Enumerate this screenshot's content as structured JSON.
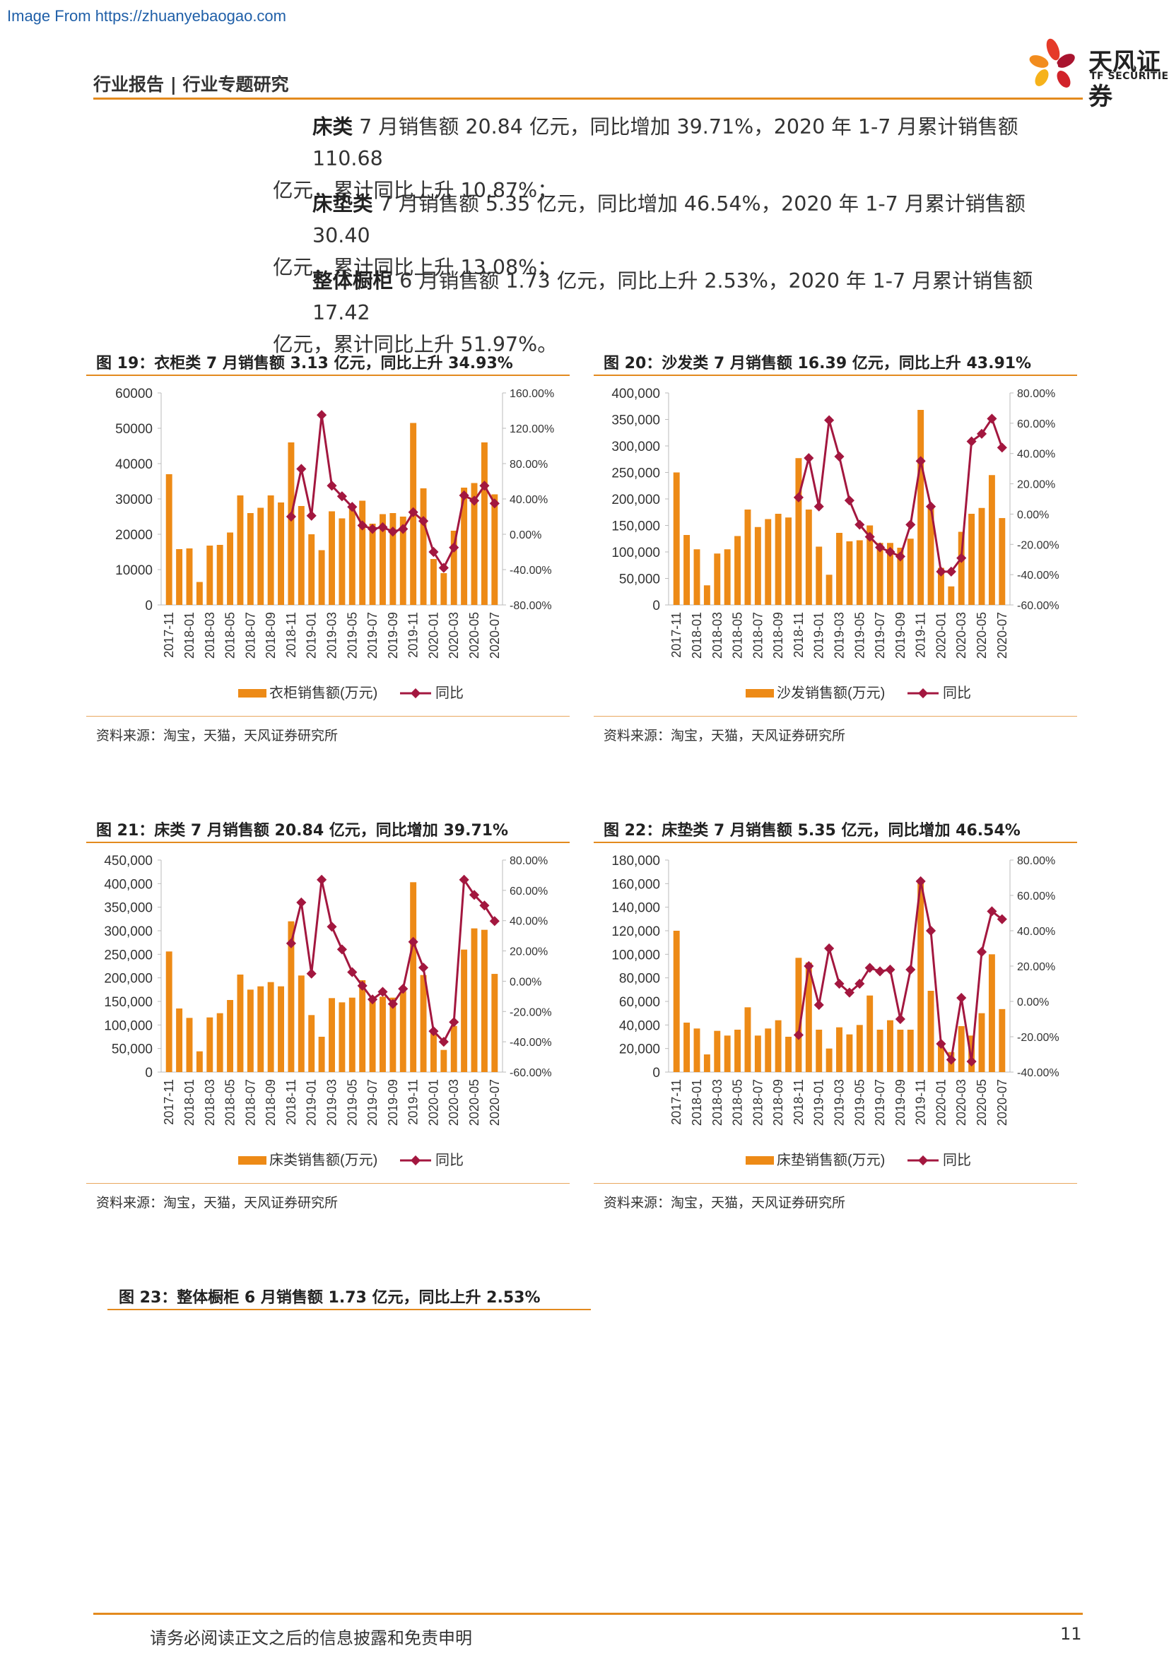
{
  "watermark": "Image From https://zhuanyebaogao.com",
  "header": {
    "title": "行业报告 | 行业专题研究",
    "logo_text": "天风证券",
    "logo_sub": "TF SECURITIES"
  },
  "paragraphs": [
    {
      "lead": "床类",
      "line1": " 7 月销售额 20.84 亿元，同比增加 39.71%，2020 年 1-7 月累计销售额 110.68",
      "line2": "亿元，累计同比上升 10.87%；"
    },
    {
      "lead": "床垫类",
      "line1": " 7 月销售额 5.35 亿元，同比增加 46.54%，2020 年 1-7 月累计销售额 30.40",
      "line2": "亿元，累计同比上升 13.08%；"
    },
    {
      "lead": "整体橱柜",
      "line1": " 6 月销售额 1.73 亿元，同比上升 2.53%，2020 年 1-7 月累计销售额 17.42",
      "line2": "亿元，累计同比上升 51.97%。"
    }
  ],
  "figures": {
    "fig19": {
      "title": "图 19：衣柜类 7 月销售额 3.13 亿元，同比上升 34.93%",
      "source": "资料来源：淘宝，天猫，天风证券研究所"
    },
    "fig20": {
      "title": "图 20：沙发类 7 月销售额 16.39 亿元，同比上升 43.91%",
      "source": "资料来源：淘宝，天猫，天风证券研究所"
    },
    "fig21": {
      "title": "图 21：床类 7 月销售额 20.84 亿元，同比增加 39.71%",
      "source": "资料来源：淘宝，天猫，天风证券研究所"
    },
    "fig22": {
      "title": "图 22：床垫类 7 月销售额 5.35 亿元，同比增加 46.54%",
      "source": "资料来源：淘宝，天猫，天风证券研究所"
    },
    "fig23": {
      "title": "图 23：整体橱柜 6 月销售额 1.73 亿元，同比上升 2.53%"
    }
  },
  "footer": {
    "disclaimer": "请务必阅读正文之后的信息披露和免责申明",
    "page": "11"
  },
  "colors": {
    "bar": "#ed8a16",
    "line": "#a3173f",
    "accent": "#e38a1e"
  },
  "chart_data": [
    {
      "id": "fig19",
      "type": "bar+line",
      "categories": [
        "2017-11",
        "2017-12",
        "2018-01",
        "2018-02",
        "2018-03",
        "2018-04",
        "2018-05",
        "2018-06",
        "2018-07",
        "2018-08",
        "2018-09",
        "2018-10",
        "2018-11",
        "2018-12",
        "2019-01",
        "2019-02",
        "2019-03",
        "2019-04",
        "2019-05",
        "2019-06",
        "2019-07",
        "2019-08",
        "2019-09",
        "2019-10",
        "2019-11",
        "2019-12",
        "2020-01",
        "2020-02",
        "2020-03",
        "2020-04",
        "2020-05",
        "2020-06",
        "2020-07"
      ],
      "tick_labels": [
        "2017-11",
        "2018-01",
        "2018-03",
        "2018-05",
        "2018-07",
        "2018-09",
        "2018-11",
        "2019-01",
        "2019-03",
        "2019-05",
        "2019-07",
        "2019-09",
        "2019-11",
        "2020-01",
        "2020-03",
        "2020-05",
        "2020-07"
      ],
      "series": [
        {
          "name": "衣柜销售额(万元)",
          "type": "bar",
          "axis": "left",
          "values": [
            37000,
            15800,
            16000,
            6500,
            16800,
            17000,
            20500,
            31000,
            26000,
            27500,
            31000,
            29000,
            46000,
            28000,
            20000,
            15500,
            26500,
            24500,
            27500,
            29500,
            23000,
            25700,
            26000,
            25000,
            51500,
            33000,
            13000,
            9000,
            21000,
            33200,
            34500,
            46000,
            31300
          ]
        },
        {
          "name": "同比",
          "type": "line",
          "axis": "right",
          "values": [
            null,
            null,
            null,
            null,
            null,
            null,
            null,
            null,
            null,
            null,
            null,
            null,
            0.2,
            0.74,
            0.21,
            1.35,
            0.55,
            0.43,
            0.31,
            0.1,
            0.06,
            0.08,
            0.03,
            0.06,
            0.25,
            0.15,
            -0.2,
            -0.38,
            -0.15,
            0.44,
            0.38,
            0.55,
            0.3493
          ]
        }
      ],
      "left_axis": {
        "min": 0,
        "max": 60000,
        "ticks": [
          "0",
          "10000",
          "20000",
          "30000",
          "40000",
          "50000",
          "60000"
        ]
      },
      "right_axis": {
        "min": -0.8,
        "max": 1.6,
        "ticks": [
          "-80.00%",
          "-40.00%",
          "0.00%",
          "40.00%",
          "80.00%",
          "120.00%",
          "160.00%"
        ]
      },
      "legend": {
        "position": "bottom",
        "bar_label": "衣柜销售额(万元)",
        "line_label": "同比"
      }
    },
    {
      "id": "fig20",
      "type": "bar+line",
      "categories": [
        "2017-11",
        "2017-12",
        "2018-01",
        "2018-02",
        "2018-03",
        "2018-04",
        "2018-05",
        "2018-06",
        "2018-07",
        "2018-08",
        "2018-09",
        "2018-10",
        "2018-11",
        "2018-12",
        "2019-01",
        "2019-02",
        "2019-03",
        "2019-04",
        "2019-05",
        "2019-06",
        "2019-07",
        "2019-08",
        "2019-09",
        "2019-10",
        "2019-11",
        "2019-12",
        "2020-01",
        "2020-02",
        "2020-03",
        "2020-04",
        "2020-05",
        "2020-06",
        "2020-07"
      ],
      "tick_labels": [
        "2017-11",
        "2018-01",
        "2018-03",
        "2018-05",
        "2018-07",
        "2018-09",
        "2018-11",
        "2019-01",
        "2019-03",
        "2019-05",
        "2019-07",
        "2019-09",
        "2019-11",
        "2020-01",
        "2020-03",
        "2020-05",
        "2020-07"
      ],
      "series": [
        {
          "name": "沙发销售额(万元)",
          "type": "bar",
          "axis": "left",
          "values": [
            250000,
            132000,
            105000,
            37000,
            97000,
            105000,
            130000,
            180000,
            147000,
            162000,
            172000,
            165000,
            277000,
            180000,
            110000,
            57000,
            136000,
            120000,
            122000,
            150000,
            117000,
            117000,
            108000,
            125000,
            368000,
            183000,
            70000,
            35000,
            138000,
            172000,
            183000,
            245000,
            163900
          ]
        },
        {
          "name": "同比",
          "type": "line",
          "axis": "right",
          "values": [
            null,
            null,
            null,
            null,
            null,
            null,
            null,
            null,
            null,
            null,
            null,
            null,
            0.11,
            0.37,
            0.05,
            0.62,
            0.38,
            0.09,
            -0.07,
            -0.15,
            -0.22,
            -0.25,
            -0.28,
            -0.07,
            0.35,
            0.05,
            -0.38,
            -0.38,
            -0.29,
            0.48,
            0.53,
            0.63,
            0.4391
          ]
        }
      ],
      "left_axis": {
        "min": 0,
        "max": 400000,
        "ticks": [
          "0",
          "50,000",
          "100,000",
          "150,000",
          "200,000",
          "250,000",
          "300,000",
          "350,000",
          "400,000"
        ]
      },
      "right_axis": {
        "min": -0.6,
        "max": 0.8,
        "ticks": [
          "-60.00%",
          "-40.00%",
          "-20.00%",
          "0.00%",
          "20.00%",
          "40.00%",
          "60.00%",
          "80.00%"
        ]
      },
      "legend": {
        "position": "bottom",
        "bar_label": "沙发销售额(万元)",
        "line_label": "同比"
      }
    },
    {
      "id": "fig21",
      "type": "bar+line",
      "categories": [
        "2017-11",
        "2017-12",
        "2018-01",
        "2018-02",
        "2018-03",
        "2018-04",
        "2018-05",
        "2018-06",
        "2018-07",
        "2018-08",
        "2018-09",
        "2018-10",
        "2018-11",
        "2018-12",
        "2019-01",
        "2019-02",
        "2019-03",
        "2019-04",
        "2019-05",
        "2019-06",
        "2019-07",
        "2019-08",
        "2019-09",
        "2019-10",
        "2019-11",
        "2019-12",
        "2020-01",
        "2020-02",
        "2020-03",
        "2020-04",
        "2020-05",
        "2020-06",
        "2020-07"
      ],
      "tick_labels": [
        "2017-11",
        "2018-01",
        "2018-03",
        "2018-05",
        "2018-07",
        "2018-09",
        "2018-11",
        "2019-01",
        "2019-03",
        "2019-05",
        "2019-07",
        "2019-09",
        "2019-11",
        "2020-01",
        "2020-03",
        "2020-05",
        "2020-07"
      ],
      "series": [
        {
          "name": "床类销售额(万元)",
          "type": "bar",
          "axis": "left",
          "values": [
            256000,
            135000,
            115000,
            44000,
            116000,
            125000,
            153000,
            207000,
            175000,
            182000,
            191000,
            182000,
            320000,
            205000,
            121000,
            75000,
            157000,
            148000,
            158000,
            195000,
            153000,
            160000,
            158000,
            172000,
            403000,
            206000,
            84000,
            47000,
            98000,
            260000,
            305000,
            302000,
            208400
          ]
        },
        {
          "name": "同比",
          "type": "line",
          "axis": "right",
          "values": [
            null,
            null,
            null,
            null,
            null,
            null,
            null,
            null,
            null,
            null,
            null,
            null,
            0.25,
            0.52,
            0.05,
            0.67,
            0.36,
            0.21,
            0.06,
            -0.03,
            -0.12,
            -0.07,
            -0.15,
            -0.05,
            0.26,
            0.09,
            -0.33,
            -0.4,
            -0.27,
            0.67,
            0.57,
            0.5,
            0.3971
          ]
        }
      ],
      "left_axis": {
        "min": 0,
        "max": 450000,
        "ticks": [
          "0",
          "50,000",
          "100,000",
          "150,000",
          "200,000",
          "250,000",
          "300,000",
          "350,000",
          "400,000",
          "450,000"
        ]
      },
      "right_axis": {
        "min": -0.6,
        "max": 0.8,
        "ticks": [
          "-60.00%",
          "-40.00%",
          "-20.00%",
          "0.00%",
          "20.00%",
          "40.00%",
          "60.00%",
          "80.00%"
        ]
      },
      "legend": {
        "position": "bottom",
        "bar_label": "床类销售额(万元)",
        "line_label": "同比"
      }
    },
    {
      "id": "fig22",
      "type": "bar+line",
      "categories": [
        "2017-11",
        "2017-12",
        "2018-01",
        "2018-02",
        "2018-03",
        "2018-04",
        "2018-05",
        "2018-06",
        "2018-07",
        "2018-08",
        "2018-09",
        "2018-10",
        "2018-11",
        "2018-12",
        "2019-01",
        "2019-02",
        "2019-03",
        "2019-04",
        "2019-05",
        "2019-06",
        "2019-07",
        "2019-08",
        "2019-09",
        "2019-10",
        "2019-11",
        "2019-12",
        "2020-01",
        "2020-02",
        "2020-03",
        "2020-04",
        "2020-05",
        "2020-06",
        "2020-07"
      ],
      "tick_labels": [
        "2017-11",
        "2018-01",
        "2018-03",
        "2018-05",
        "2018-07",
        "2018-09",
        "2018-11",
        "2019-01",
        "2019-03",
        "2019-05",
        "2019-07",
        "2019-09",
        "2019-11",
        "2020-01",
        "2020-03",
        "2020-05",
        "2020-07"
      ],
      "series": [
        {
          "name": "床垫销售额(万元)",
          "type": "bar",
          "axis": "left",
          "values": [
            120000,
            42000,
            37000,
            15000,
            35000,
            31000,
            36000,
            55000,
            31000,
            37000,
            44000,
            30000,
            97000,
            93000,
            36000,
            20000,
            38000,
            32000,
            40000,
            65000,
            36000,
            44000,
            36000,
            36000,
            162000,
            69000,
            25000,
            17000,
            39000,
            31000,
            50000,
            100000,
            53500
          ]
        },
        {
          "name": "同比",
          "type": "line",
          "axis": "right",
          "values": [
            null,
            null,
            null,
            null,
            null,
            null,
            null,
            null,
            null,
            null,
            null,
            null,
            -0.19,
            0.2,
            -0.02,
            0.3,
            0.1,
            0.05,
            0.1,
            0.19,
            0.17,
            0.18,
            -0.1,
            0.18,
            0.68,
            0.4,
            -0.24,
            -0.33,
            0.02,
            -0.34,
            0.28,
            0.51,
            0.4654
          ]
        }
      ],
      "left_axis": {
        "min": 0,
        "max": 180000,
        "ticks": [
          "0",
          "20,000",
          "40,000",
          "60,000",
          "80,000",
          "100,000",
          "120,000",
          "140,000",
          "160,000",
          "180,000"
        ]
      },
      "right_axis": {
        "min": -0.4,
        "max": 0.8,
        "ticks": [
          "-40.00%",
          "-20.00%",
          "0.00%",
          "20.00%",
          "40.00%",
          "60.00%",
          "80.00%"
        ]
      },
      "legend": {
        "position": "bottom",
        "bar_label": "床垫销售额(万元)",
        "line_label": "同比"
      }
    }
  ]
}
